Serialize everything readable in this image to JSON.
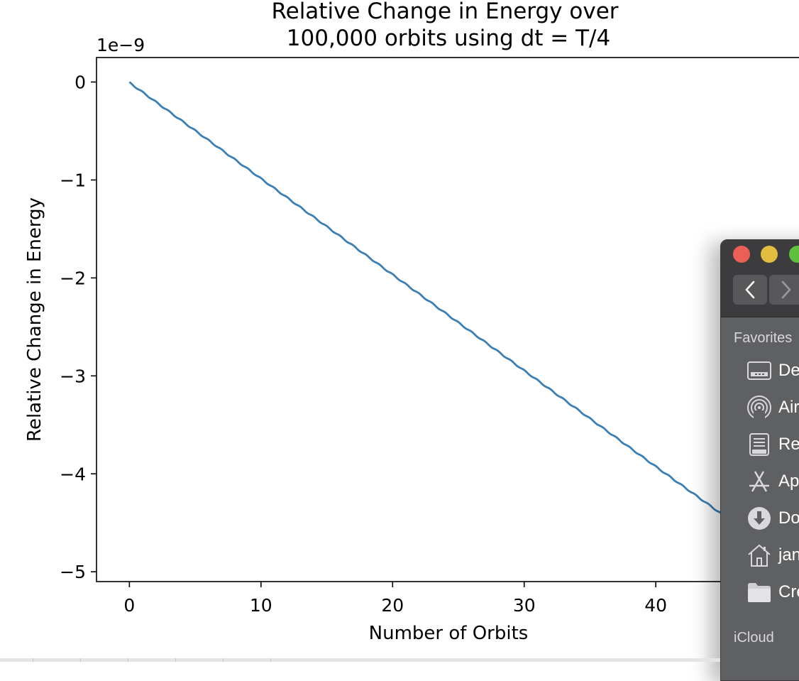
{
  "chart_data": {
    "type": "line",
    "title": "Relative Change in Energy over\n100,000 orbits using dt = T/4",
    "title_lines": [
      "Relative Change in Energy over",
      "100,000 orbits using dt = T/4"
    ],
    "xlabel": "Number of Orbits",
    "ylabel": "Relative Change in Energy",
    "offset_text": "1e−9",
    "x_ticks": [
      0,
      10,
      20,
      30,
      40
    ],
    "x_tick_labels": [
      "0",
      "10",
      "20",
      "30",
      "40"
    ],
    "y_ticks": [
      0,
      -1,
      -2,
      -3,
      -4,
      -5
    ],
    "y_tick_labels": [
      "0",
      "−1",
      "−2",
      "−3",
      "−4",
      "−5"
    ],
    "xlim": [
      -2.5,
      52.5
    ],
    "ylim": [
      -5.1,
      0.25
    ],
    "grid": false,
    "line_color": "#3b7fb5",
    "series": [
      {
        "x": [
          0,
          10,
          20,
          30,
          40,
          46
        ],
        "y": [
          0,
          -0.98,
          -1.96,
          -2.94,
          -3.92,
          -4.5
        ]
      }
    ],
    "ripple_period": 1.0,
    "ripple_amplitude": 0.012
  },
  "finder": {
    "sections": {
      "favorites": "Favorites",
      "icloud": "iCloud"
    },
    "items": [
      {
        "label": "De",
        "icon": "desktop-icon"
      },
      {
        "label": "Air",
        "icon": "airdrop-icon"
      },
      {
        "label": "Re",
        "icon": "recents-icon"
      },
      {
        "label": "Ap",
        "icon": "applications-icon"
      },
      {
        "label": "Do",
        "icon": "downloads-icon"
      },
      {
        "label": "jan",
        "icon": "home-icon"
      },
      {
        "label": "Cre",
        "icon": "folder-icon"
      }
    ],
    "colors": {
      "close": "#ec5f57",
      "minimize": "#e2bd3f",
      "maximize": "#5fc03f"
    }
  }
}
